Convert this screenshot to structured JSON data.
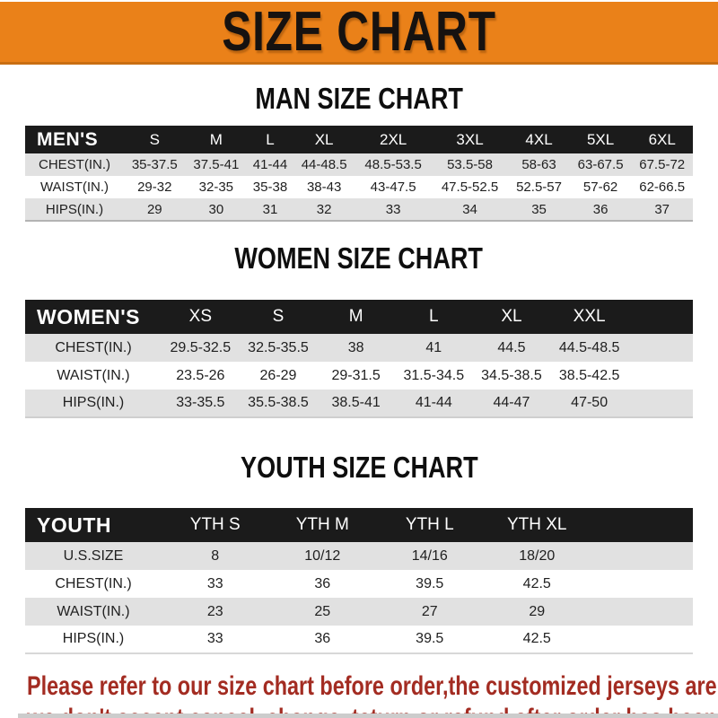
{
  "banner": {
    "title": "SIZE CHART"
  },
  "sections": [
    {
      "heading": "MAN SIZE CHART",
      "table": {
        "label": "MEN'S",
        "columns": [
          "S",
          "M",
          "L",
          "XL",
          "2XL",
          "3XL",
          "4XL",
          "5XL",
          "6XL"
        ],
        "rows": [
          {
            "label": "CHEST(IN.)",
            "values": [
              "35-37.5",
              "37.5-41",
              "41-44",
              "44-48.5",
              "48.5-53.5",
              "53.5-58",
              "58-63",
              "63-67.5",
              "67.5-72"
            ]
          },
          {
            "label": "WAIST(IN.)",
            "values": [
              "29-32",
              "32-35",
              "35-38",
              "38-43",
              "43-47.5",
              "47.5-52.5",
              "52.5-57",
              "57-62",
              "62-66.5"
            ]
          },
          {
            "label": "HIPS(IN.)",
            "values": [
              "29",
              "30",
              "31",
              "32",
              "33",
              "34",
              "35",
              "36",
              "37"
            ]
          }
        ]
      }
    },
    {
      "heading": "WOMEN SIZE CHART",
      "table": {
        "label": "WOMEN'S",
        "columns": [
          "XS",
          "S",
          "M",
          "L",
          "XL",
          "XXL"
        ],
        "rows": [
          {
            "label": "CHEST(IN.)",
            "values": [
              "29.5-32.5",
              "32.5-35.5",
              "38",
              "41",
              "44.5",
              "44.5-48.5"
            ]
          },
          {
            "label": "WAIST(IN.)",
            "values": [
              "23.5-26",
              "26-29",
              "29-31.5",
              "31.5-34.5",
              "34.5-38.5",
              "38.5-42.5"
            ]
          },
          {
            "label": "HIPS(IN.)",
            "values": [
              "33-35.5",
              "35.5-38.5",
              "38.5-41",
              "41-44",
              "44-47",
              "47-50"
            ]
          }
        ]
      }
    },
    {
      "heading": "YOUTH SIZE CHART",
      "table": {
        "label": "YOUTH",
        "columns": [
          "YTH S",
          "YTH M",
          "YTH L",
          "YTH XL"
        ],
        "rows": [
          {
            "label": "U.S.SIZE",
            "values": [
              "8",
              "10/12",
              "14/16",
              "18/20"
            ]
          },
          {
            "label": "CHEST(IN.)",
            "values": [
              "33",
              "36",
              "39.5",
              "42.5"
            ]
          },
          {
            "label": "WAIST(IN.)",
            "values": [
              "23",
              "25",
              "27",
              "29"
            ]
          },
          {
            "label": "HIPS(IN.)",
            "values": [
              "33",
              "36",
              "39.5",
              "42.5"
            ]
          }
        ]
      }
    }
  ],
  "disclaimer": {
    "line1": "Please refer to our size chart before order,the customized jerseys are special products,",
    "line2": "we don't accept cancel, change, teturn or refund after order has been placed!"
  },
  "colors": {
    "banner_orange": "#EA8119",
    "header_bar_black": "#1B1B1B",
    "row_gray": "#E1E1E1",
    "note_red": "#A32C22"
  }
}
